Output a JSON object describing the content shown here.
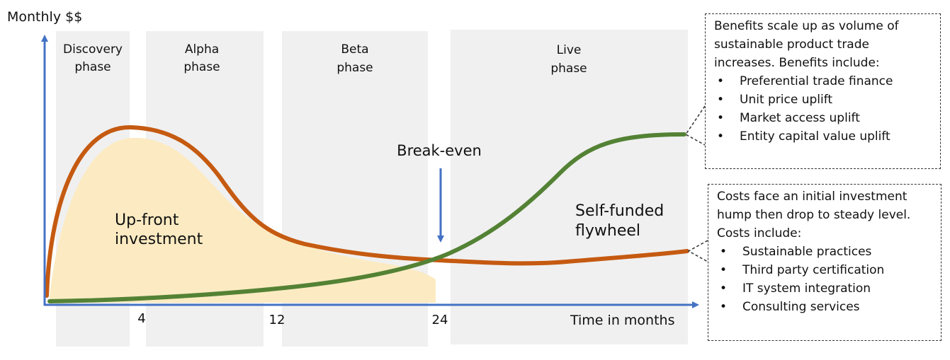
{
  "y_axis_label": "Monthly $$",
  "x_axis_label": "Time in months",
  "phases": [
    {
      "line1": "Discovery",
      "line2": "phase"
    },
    {
      "line1": "Alpha",
      "line2": "phase"
    },
    {
      "line1": "Beta",
      "line2": "phase"
    },
    {
      "line1": "Live",
      "line2": "phase"
    }
  ],
  "ticks": [
    "4",
    "12",
    "24"
  ],
  "break_even_label": "Break-even",
  "investment_label": {
    "line1": "Up-front",
    "line2": "investment"
  },
  "flywheel_label": {
    "line1": "Self-funded",
    "line2": "flywheel"
  },
  "benefits_callout": {
    "intro": "Benefits scale up as volume of sustainable product trade increases.  Benefits include:",
    "items": [
      "Preferential trade finance",
      "Unit price uplift",
      "Market access uplift",
      "Entity capital value uplift"
    ]
  },
  "costs_callout": {
    "intro": "Costs face an initial investment hump then drop to steady level. Costs include:",
    "items": [
      "Sustainable practices",
      "Third party certification",
      "IT system integration",
      "Consulting services"
    ]
  },
  "colors": {
    "axis": "#4472C4",
    "cost_curve": "#C55A11",
    "benefit_curve": "#548235",
    "investment_fill": "#FCEBC2",
    "phase_band": "#F0F0F0"
  }
}
